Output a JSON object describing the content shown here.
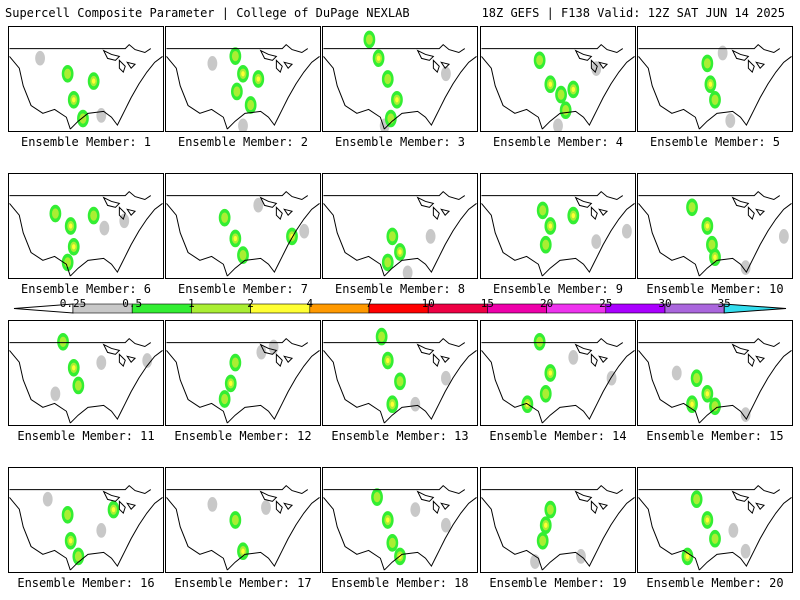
{
  "header": {
    "left_title": "Supercell Composite Parameter | College of DuPage NEXLAB",
    "right_title": "18Z GEFS | F138 Valid: 12Z SAT JUN 14 2025"
  },
  "member_prefix": "Ensemble Member: ",
  "members": [
    {
      "label": "Ensemble Member: 1",
      "hot": [
        [
          0.38,
          0.45
        ],
        [
          0.42,
          0.7
        ],
        [
          0.48,
          0.88
        ],
        [
          0.55,
          0.52
        ]
      ],
      "gray": [
        [
          0.2,
          0.3
        ],
        [
          0.6,
          0.85
        ]
      ]
    },
    {
      "label": "Ensemble Member: 2",
      "hot": [
        [
          0.45,
          0.28
        ],
        [
          0.5,
          0.45
        ],
        [
          0.46,
          0.62
        ],
        [
          0.6,
          0.5
        ],
        [
          0.55,
          0.75
        ]
      ],
      "gray": [
        [
          0.3,
          0.35
        ],
        [
          0.5,
          0.95
        ]
      ]
    },
    {
      "label": "Ensemble Member: 3",
      "hot": [
        [
          0.3,
          0.12
        ],
        [
          0.36,
          0.3
        ],
        [
          0.42,
          0.5
        ],
        [
          0.48,
          0.7
        ],
        [
          0.44,
          0.88
        ]
      ],
      "gray": [
        [
          0.8,
          0.45
        ],
        [
          0.4,
          0.95
        ]
      ]
    },
    {
      "label": "Ensemble Member: 4",
      "hot": [
        [
          0.38,
          0.32
        ],
        [
          0.45,
          0.55
        ],
        [
          0.52,
          0.65
        ],
        [
          0.6,
          0.6
        ],
        [
          0.55,
          0.8
        ]
      ],
      "gray": [
        [
          0.5,
          0.95
        ],
        [
          0.75,
          0.4
        ]
      ]
    },
    {
      "label": "Ensemble Member: 5",
      "hot": [
        [
          0.45,
          0.35
        ],
        [
          0.47,
          0.55
        ],
        [
          0.5,
          0.7
        ]
      ],
      "gray": [
        [
          0.6,
          0.9
        ],
        [
          0.55,
          0.25
        ]
      ]
    },
    {
      "label": "Ensemble Member: 6",
      "hot": [
        [
          0.3,
          0.38
        ],
        [
          0.4,
          0.5
        ],
        [
          0.55,
          0.4
        ],
        [
          0.42,
          0.7
        ],
        [
          0.38,
          0.85
        ]
      ],
      "gray": [
        [
          0.62,
          0.52
        ],
        [
          0.75,
          0.45
        ]
      ]
    },
    {
      "label": "Ensemble Member: 7",
      "hot": [
        [
          0.38,
          0.42
        ],
        [
          0.45,
          0.62
        ],
        [
          0.5,
          0.78
        ],
        [
          0.82,
          0.6
        ]
      ],
      "gray": [
        [
          0.9,
          0.55
        ],
        [
          0.6,
          0.3
        ]
      ]
    },
    {
      "label": "Ensemble Member: 8",
      "hot": [
        [
          0.45,
          0.6
        ],
        [
          0.5,
          0.75
        ],
        [
          0.42,
          0.85
        ]
      ],
      "gray": [
        [
          0.55,
          0.95
        ],
        [
          0.7,
          0.6
        ]
      ]
    },
    {
      "label": "Ensemble Member: 9",
      "hot": [
        [
          0.4,
          0.35
        ],
        [
          0.45,
          0.5
        ],
        [
          0.42,
          0.68
        ],
        [
          0.6,
          0.4
        ]
      ],
      "gray": [
        [
          0.95,
          0.55
        ],
        [
          0.75,
          0.65
        ]
      ]
    },
    {
      "label": "Ensemble Member: 10",
      "hot": [
        [
          0.35,
          0.32
        ],
        [
          0.45,
          0.5
        ],
        [
          0.48,
          0.68
        ],
        [
          0.5,
          0.8
        ]
      ],
      "gray": [
        [
          0.95,
          0.6
        ],
        [
          0.7,
          0.9
        ]
      ]
    },
    {
      "label": "Ensemble Member: 11",
      "hot": [
        [
          0.35,
          0.2
        ],
        [
          0.42,
          0.45
        ],
        [
          0.45,
          0.62
        ]
      ],
      "gray": [
        [
          0.6,
          0.4
        ],
        [
          0.9,
          0.38
        ],
        [
          0.3,
          0.7
        ]
      ]
    },
    {
      "label": "Ensemble Member: 12",
      "hot": [
        [
          0.45,
          0.4
        ],
        [
          0.42,
          0.6
        ],
        [
          0.38,
          0.75
        ]
      ],
      "gray": [
        [
          0.62,
          0.3
        ],
        [
          0.7,
          0.25
        ]
      ]
    },
    {
      "label": "Ensemble Member: 13",
      "hot": [
        [
          0.38,
          0.15
        ],
        [
          0.42,
          0.38
        ],
        [
          0.5,
          0.58
        ],
        [
          0.45,
          0.8
        ]
      ],
      "gray": [
        [
          0.8,
          0.55
        ],
        [
          0.6,
          0.8
        ]
      ]
    },
    {
      "label": "Ensemble Member: 14",
      "hot": [
        [
          0.38,
          0.2
        ],
        [
          0.45,
          0.5
        ],
        [
          0.42,
          0.7
        ],
        [
          0.3,
          0.8
        ]
      ],
      "gray": [
        [
          0.85,
          0.55
        ],
        [
          0.6,
          0.35
        ]
      ]
    },
    {
      "label": "Ensemble Member: 15",
      "hot": [
        [
          0.38,
          0.55
        ],
        [
          0.45,
          0.7
        ],
        [
          0.5,
          0.82
        ],
        [
          0.35,
          0.8
        ]
      ],
      "gray": [
        [
          0.7,
          0.9
        ],
        [
          0.25,
          0.5
        ]
      ]
    },
    {
      "label": "Ensemble Member: 16",
      "hot": [
        [
          0.38,
          0.45
        ],
        [
          0.4,
          0.7
        ],
        [
          0.45,
          0.85
        ],
        [
          0.68,
          0.4
        ]
      ],
      "gray": [
        [
          0.25,
          0.3
        ],
        [
          0.6,
          0.6
        ]
      ]
    },
    {
      "label": "Ensemble Member: 17",
      "hot": [
        [
          0.45,
          0.5
        ],
        [
          0.5,
          0.8
        ]
      ],
      "gray": [
        [
          0.3,
          0.35
        ],
        [
          0.65,
          0.38
        ]
      ]
    },
    {
      "label": "Ensemble Member: 18",
      "hot": [
        [
          0.35,
          0.28
        ],
        [
          0.42,
          0.5
        ],
        [
          0.45,
          0.72
        ],
        [
          0.5,
          0.85
        ]
      ],
      "gray": [
        [
          0.8,
          0.55
        ],
        [
          0.6,
          0.4
        ]
      ]
    },
    {
      "label": "Ensemble Member: 19",
      "hot": [
        [
          0.45,
          0.4
        ],
        [
          0.42,
          0.55
        ],
        [
          0.4,
          0.7
        ]
      ],
      "gray": [
        [
          0.65,
          0.85
        ],
        [
          0.35,
          0.9
        ]
      ]
    },
    {
      "label": "Ensemble Member: 20",
      "hot": [
        [
          0.38,
          0.3
        ],
        [
          0.45,
          0.5
        ],
        [
          0.5,
          0.68
        ],
        [
          0.32,
          0.85
        ]
      ],
      "gray": [
        [
          0.62,
          0.6
        ],
        [
          0.7,
          0.8
        ]
      ]
    }
  ],
  "colorbar": {
    "levels": [
      "0.25",
      "0.5",
      "1",
      "2",
      "4",
      "7",
      "10",
      "15",
      "20",
      "25",
      "30",
      "35"
    ],
    "colors": [
      "#c8c8c8",
      "#33ee33",
      "#aaee33",
      "#ffff33",
      "#ff9900",
      "#ff0000",
      "#ee0044",
      "#ee00aa",
      "#ee33ee",
      "#aa00ff",
      "#aa66dd",
      "#33ddee"
    ]
  },
  "map_colors": {
    "land": "#ffffff",
    "lines": "#000000",
    "gray": "#c8c8c8",
    "green": "#33ee33",
    "lime": "#aaee33",
    "yellow": "#ffff33",
    "orange": "#ff9900",
    "red": "#ff0000"
  }
}
